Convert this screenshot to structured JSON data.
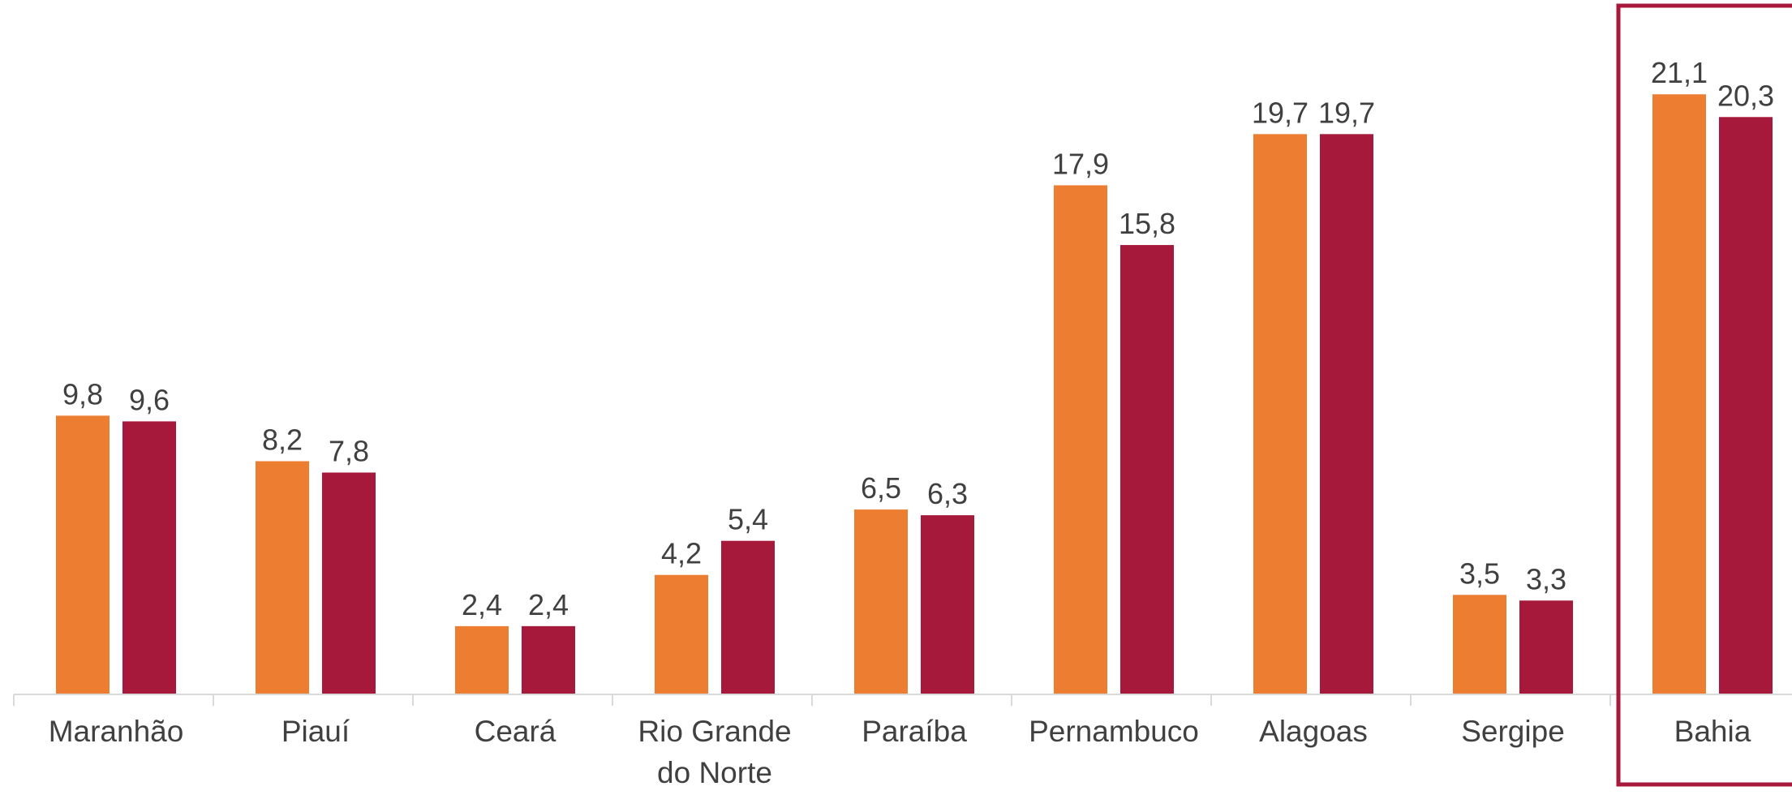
{
  "chart_data": {
    "type": "bar",
    "title": "",
    "xlabel": "",
    "ylabel": "",
    "categories": [
      [
        "Maranhão"
      ],
      [
        "Piauí"
      ],
      [
        "Ceará"
      ],
      [
        "Rio Grande",
        "do Norte"
      ],
      [
        "Paraíba"
      ],
      [
        "Pernambuco"
      ],
      [
        "Alagoas"
      ],
      [
        "Sergipe"
      ],
      [
        "Bahia"
      ]
    ],
    "series": [
      {
        "values": [
          9.8,
          8.2,
          2.4,
          4.2,
          6.5,
          17.9,
          19.7,
          3.5,
          21.1
        ],
        "labels": [
          "9,8",
          "8,2",
          "2,4",
          "4,2",
          "6,5",
          "17,9",
          "19,7",
          "3,5",
          "21,1"
        ],
        "color": "#ED7D31"
      },
      {
        "values": [
          9.6,
          7.8,
          2.4,
          5.4,
          6.3,
          15.8,
          19.7,
          3.3,
          20.3
        ],
        "labels": [
          "9,6",
          "7,8",
          "2,4",
          "5,4",
          "6,3",
          "15,8",
          "19,7",
          "3,3",
          "20,3"
        ],
        "color": "#A6193B"
      }
    ],
    "ylim": [
      0,
      22
    ],
    "highlight": {
      "category": "Bahia",
      "color": "#A6193B"
    },
    "axis_color": "#D9D9D9",
    "text_color": "#404040",
    "grid": false,
    "legend": "none"
  }
}
